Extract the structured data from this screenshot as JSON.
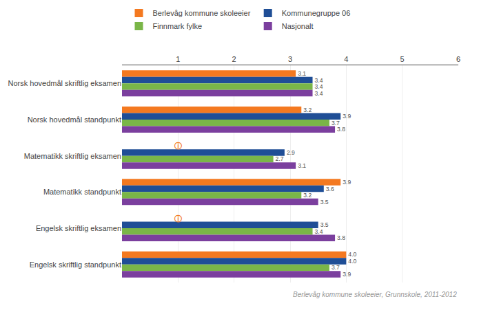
{
  "chart_data": {
    "type": "bar",
    "orientation": "horizontal",
    "categories": [
      "Norsk hovedmål skriftlig eksamen",
      "Norsk hovedmål standpunkt",
      "Matematikk skriftlig eksamen",
      "Matematikk standpunkt",
      "Engelsk skriftlig eksamen",
      "Engelsk skriftlig standpunkt"
    ],
    "series": [
      {
        "name": "Berlevåg kommune skoleeier",
        "color": "#f47920",
        "values": [
          3.1,
          3.2,
          null,
          3.9,
          null,
          4.0
        ],
        "value_labels": [
          "3.1",
          "3.2",
          null,
          "3.9",
          null,
          "4.0"
        ]
      },
      {
        "name": "Kommunegruppe 06",
        "color": "#1f4e96",
        "values": [
          3.4,
          3.9,
          2.9,
          3.6,
          3.5,
          4.0
        ],
        "value_labels": [
          "3.4",
          "3.9",
          "2.9",
          "3.6",
          "3.5",
          "4.0"
        ]
      },
      {
        "name": "Finnmark fylke",
        "color": "#7ab648",
        "values": [
          3.4,
          3.7,
          2.7,
          3.2,
          3.4,
          3.7
        ],
        "value_labels": [
          "3.4",
          "3.7",
          "2.7",
          "3.2",
          "3.4",
          "3.7"
        ]
      },
      {
        "name": "Nasjonalt",
        "color": "#7b3f9e",
        "values": [
          3.4,
          3.8,
          3.1,
          3.5,
          3.8,
          3.9
        ],
        "value_labels": [
          "3.4",
          "3.8",
          "3.1",
          "3.5",
          "3.8",
          "3.9"
        ]
      }
    ],
    "xlim": [
      0,
      6
    ],
    "xticks": [
      1,
      2,
      3,
      4,
      5,
      6
    ],
    "grid": true,
    "data_labels": true,
    "legend": "top",
    "annotations": [
      {
        "text": "ⓘ",
        "x": 1,
        "category": "Matematikk skriftlig eksamen",
        "series": "Berlevåg kommune skoleeier",
        "color": "#f47920"
      },
      {
        "text": "ⓘ",
        "x": 1,
        "category": "Engelsk skriftlig eksamen",
        "series": "Berlevåg kommune skoleeier",
        "color": "#f47920"
      },
      {
        "text": "Berlevåg kommune skoleeier, Grunnskole, 2011-2012"
      }
    ]
  }
}
